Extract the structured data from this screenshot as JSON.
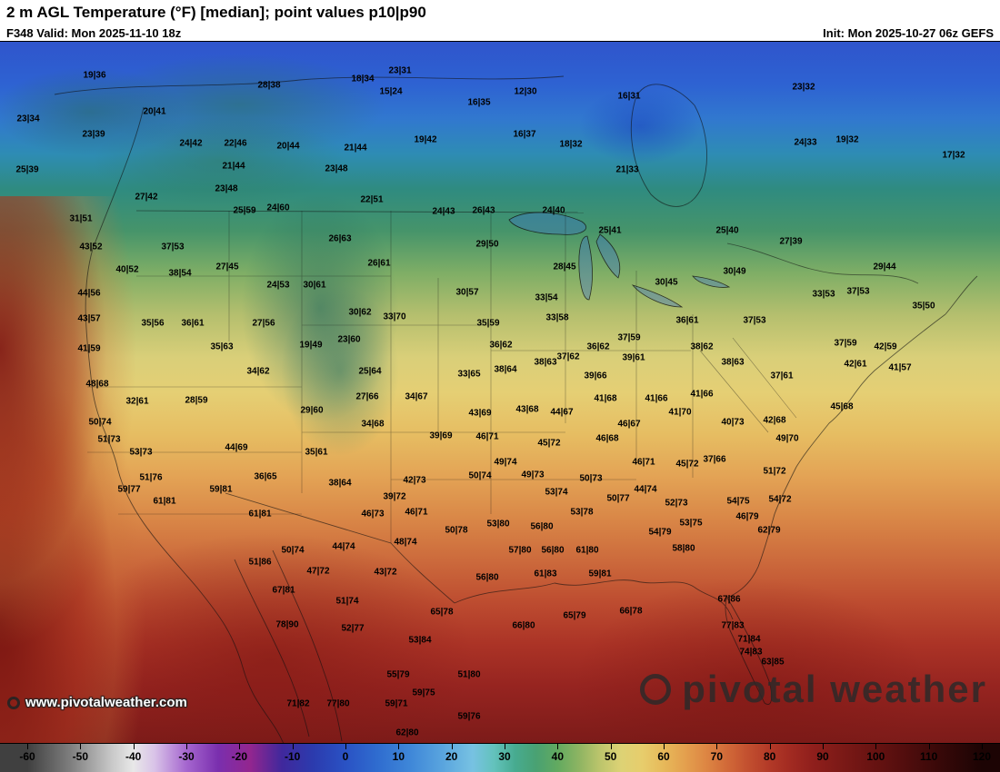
{
  "header": {
    "title": "2 m AGL Temperature (°F) [median]; point values p10|p90",
    "valid_label": "F348 Valid: Mon 2025-11-10 18z",
    "init_label": "Init: Mon 2025-10-27 06z GEFS"
  },
  "watermarks": {
    "url": "www.pivotalweather.com",
    "brand": "pivotal weather"
  },
  "colorbar": {
    "unit": "°F",
    "min": -60,
    "max": 120,
    "ticks": [
      -60,
      -50,
      -40,
      -30,
      -20,
      -10,
      0,
      10,
      20,
      30,
      40,
      50,
      60,
      70,
      80,
      90,
      100,
      110,
      120
    ],
    "stops": [
      [
        -60,
        "#404040"
      ],
      [
        -52,
        "#7d7d7d"
      ],
      [
        -44,
        "#c9c9c9"
      ],
      [
        -40,
        "#e8e8e8"
      ],
      [
        -36,
        "#d9c3e8"
      ],
      [
        -30,
        "#a566cf"
      ],
      [
        -24,
        "#7a2fae"
      ],
      [
        -18,
        "#93268f"
      ],
      [
        -12,
        "#40289c"
      ],
      [
        -6,
        "#2b3bae"
      ],
      [
        0,
        "#2a52c4"
      ],
      [
        6,
        "#2f6ccf"
      ],
      [
        12,
        "#3e86d8"
      ],
      [
        18,
        "#58a3de"
      ],
      [
        24,
        "#77c2e2"
      ],
      [
        28,
        "#63c2bc"
      ],
      [
        32,
        "#47ab90"
      ],
      [
        36,
        "#49a172"
      ],
      [
        40,
        "#62aa60"
      ],
      [
        44,
        "#8db462"
      ],
      [
        48,
        "#bcc56c"
      ],
      [
        52,
        "#ddd275"
      ],
      [
        56,
        "#e7cd6c"
      ],
      [
        60,
        "#e7b95a"
      ],
      [
        64,
        "#e4a04e"
      ],
      [
        68,
        "#dd8643"
      ],
      [
        72,
        "#d16938"
      ],
      [
        76,
        "#c24f2f"
      ],
      [
        80,
        "#b23927"
      ],
      [
        84,
        "#a12a21"
      ],
      [
        88,
        "#901f1c"
      ],
      [
        94,
        "#7a1916"
      ],
      [
        100,
        "#661211"
      ],
      [
        106,
        "#500d0d"
      ],
      [
        112,
        "#380808"
      ],
      [
        120,
        "#1c0404"
      ]
    ]
  },
  "map_points": [
    [
      104,
      37,
      "19|36"
    ],
    [
      296,
      48,
      "28|38"
    ],
    [
      440,
      32,
      "23|31"
    ],
    [
      399,
      41,
      "18|34"
    ],
    [
      430,
      55,
      "15|24"
    ],
    [
      578,
      55,
      "12|30"
    ],
    [
      692,
      60,
      "16|31"
    ],
    [
      884,
      50,
      "23|32"
    ],
    [
      31,
      85,
      "23|34"
    ],
    [
      170,
      77,
      "20|41"
    ],
    [
      527,
      67,
      "16|35"
    ],
    [
      103,
      102,
      "23|39"
    ],
    [
      210,
      112,
      "24|42"
    ],
    [
      259,
      112,
      "22|46"
    ],
    [
      317,
      115,
      "20|44"
    ],
    [
      391,
      117,
      "21|44"
    ],
    [
      468,
      108,
      "19|42"
    ],
    [
      577,
      102,
      "16|37"
    ],
    [
      628,
      113,
      "18|32"
    ],
    [
      886,
      111,
      "24|33"
    ],
    [
      932,
      108,
      "19|32"
    ],
    [
      30,
      141,
      "25|39"
    ],
    [
      257,
      137,
      "21|44"
    ],
    [
      370,
      140,
      "23|48"
    ],
    [
      690,
      141,
      "21|33"
    ],
    [
      1049,
      125,
      "17|32"
    ],
    [
      249,
      162,
      "23|48"
    ],
    [
      161,
      171,
      "27|42"
    ],
    [
      409,
      174,
      "22|51"
    ],
    [
      89,
      195,
      "31|51"
    ],
    [
      269,
      186,
      "25|59"
    ],
    [
      306,
      183,
      "24|60"
    ],
    [
      488,
      187,
      "24|43"
    ],
    [
      532,
      186,
      "26|43"
    ],
    [
      609,
      186,
      "24|40"
    ],
    [
      671,
      208,
      "25|41"
    ],
    [
      800,
      208,
      "25|40"
    ],
    [
      870,
      220,
      "27|39"
    ],
    [
      100,
      226,
      "43|52"
    ],
    [
      190,
      226,
      "37|53"
    ],
    [
      374,
      217,
      "26|63"
    ],
    [
      536,
      223,
      "29|50"
    ],
    [
      621,
      248,
      "28|45"
    ],
    [
      808,
      253,
      "30|49"
    ],
    [
      973,
      248,
      "29|44"
    ],
    [
      140,
      251,
      "40|52"
    ],
    [
      198,
      255,
      "38|54"
    ],
    [
      250,
      248,
      "27|45"
    ],
    [
      417,
      244,
      "26|61"
    ],
    [
      514,
      276,
      "30|57"
    ],
    [
      601,
      282,
      "33|54"
    ],
    [
      733,
      265,
      "30|45"
    ],
    [
      906,
      278,
      "33|53"
    ],
    [
      944,
      275,
      "37|53"
    ],
    [
      1016,
      291,
      "35|50"
    ],
    [
      98,
      277,
      "44|56"
    ],
    [
      306,
      268,
      "24|53"
    ],
    [
      346,
      268,
      "30|61"
    ],
    [
      396,
      298,
      "30|62"
    ],
    [
      434,
      303,
      "33|70"
    ],
    [
      537,
      310,
      "35|59"
    ],
    [
      613,
      304,
      "33|58"
    ],
    [
      756,
      307,
      "36|61"
    ],
    [
      830,
      307,
      "37|53"
    ],
    [
      98,
      305,
      "43|57"
    ],
    [
      168,
      310,
      "35|56"
    ],
    [
      212,
      310,
      "36|61"
    ],
    [
      290,
      310,
      "27|56"
    ],
    [
      342,
      334,
      "19|49"
    ],
    [
      384,
      328,
      "23|60"
    ],
    [
      551,
      334,
      "36|62"
    ],
    [
      625,
      347,
      "37|62"
    ],
    [
      658,
      336,
      "36|62"
    ],
    [
      692,
      326,
      "37|59"
    ],
    [
      772,
      336,
      "38|62"
    ],
    [
      930,
      332,
      "37|59"
    ],
    [
      974,
      336,
      "42|59"
    ],
    [
      98,
      338,
      "41|59"
    ],
    [
      244,
      336,
      "35|63"
    ],
    [
      407,
      363,
      "25|64"
    ],
    [
      516,
      366,
      "33|65"
    ],
    [
      556,
      361,
      "38|64"
    ],
    [
      600,
      353,
      "38|63"
    ],
    [
      697,
      348,
      "39|61"
    ],
    [
      806,
      353,
      "38|63"
    ],
    [
      860,
      368,
      "37|61"
    ],
    [
      941,
      355,
      "42|61"
    ],
    [
      990,
      359,
      "41|57"
    ],
    [
      107,
      377,
      "48|68"
    ],
    [
      284,
      363,
      "34|62"
    ],
    [
      404,
      391,
      "27|66"
    ],
    [
      458,
      391,
      "34|67"
    ],
    [
      655,
      368,
      "39|66"
    ],
    [
      666,
      393,
      "41|68"
    ],
    [
      722,
      393,
      "41|66"
    ],
    [
      772,
      388,
      "41|66"
    ],
    [
      748,
      408,
      "41|70"
    ],
    [
      926,
      402,
      "45|68"
    ],
    [
      151,
      396,
      "32|61"
    ],
    [
      216,
      395,
      "28|59"
    ],
    [
      343,
      406,
      "29|60"
    ],
    [
      528,
      409,
      "43|69"
    ],
    [
      580,
      405,
      "43|68"
    ],
    [
      618,
      408,
      "44|67"
    ],
    [
      806,
      419,
      "40|73"
    ],
    [
      852,
      417,
      "42|68"
    ],
    [
      692,
      421,
      "46|67"
    ],
    [
      668,
      437,
      "46|68"
    ],
    [
      866,
      437,
      "49|70"
    ],
    [
      110,
      419,
      "50|74"
    ],
    [
      120,
      438,
      "51|73"
    ],
    [
      410,
      421,
      "34|68"
    ],
    [
      485,
      434,
      "39|69"
    ],
    [
      536,
      435,
      "46|71"
    ],
    [
      604,
      442,
      "45|72"
    ],
    [
      260,
      447,
      "44|69"
    ],
    [
      348,
      452,
      "35|61"
    ],
    [
      556,
      463,
      "49|74"
    ],
    [
      586,
      477,
      "49|73"
    ],
    [
      155,
      452,
      "53|73"
    ],
    [
      708,
      463,
      "46|71"
    ],
    [
      756,
      465,
      "45|72"
    ],
    [
      786,
      460,
      "37|66"
    ],
    [
      852,
      473,
      "51|72"
    ],
    [
      166,
      480,
      "51|76"
    ],
    [
      292,
      479,
      "36|65"
    ],
    [
      374,
      486,
      "38|64"
    ],
    [
      456,
      483,
      "42|73"
    ],
    [
      528,
      478,
      "50|74"
    ],
    [
      650,
      481,
      "50|73"
    ],
    [
      680,
      503,
      "50|77"
    ],
    [
      710,
      493,
      "44|74"
    ],
    [
      612,
      496,
      "53|74"
    ],
    [
      142,
      493,
      "59|77"
    ],
    [
      243,
      493,
      "59|81"
    ],
    [
      181,
      506,
      "61|81"
    ],
    [
      434,
      501,
      "39|72"
    ],
    [
      744,
      508,
      "52|73"
    ],
    [
      812,
      506,
      "54|75"
    ],
    [
      858,
      504,
      "54|72"
    ],
    [
      286,
      520,
      "61|81"
    ],
    [
      410,
      520,
      "46|73"
    ],
    [
      458,
      518,
      "46|71"
    ],
    [
      640,
      518,
      "53|78"
    ],
    [
      548,
      531,
      "53|80"
    ],
    [
      596,
      534,
      "56|80"
    ],
    [
      760,
      530,
      "53|75"
    ],
    [
      822,
      523,
      "46|79"
    ],
    [
      846,
      538,
      "62|79"
    ],
    [
      502,
      538,
      "50|78"
    ],
    [
      726,
      540,
      "54|79"
    ],
    [
      752,
      558,
      "58|80"
    ],
    [
      446,
      551,
      "48|74"
    ],
    [
      322,
      560,
      "50|74"
    ],
    [
      378,
      556,
      "44|74"
    ],
    [
      572,
      560,
      "57|80"
    ],
    [
      608,
      560,
      "56|80"
    ],
    [
      646,
      560,
      "61|80"
    ],
    [
      286,
      573,
      "51|86"
    ],
    [
      350,
      583,
      "47|72"
    ],
    [
      424,
      584,
      "43|72"
    ],
    [
      536,
      590,
      "56|80"
    ],
    [
      600,
      586,
      "61|83"
    ],
    [
      660,
      586,
      "59|81"
    ],
    [
      312,
      604,
      "67|81"
    ],
    [
      382,
      616,
      "51|74"
    ],
    [
      486,
      628,
      "65|78"
    ],
    [
      694,
      627,
      "66|78"
    ],
    [
      802,
      614,
      "67|86"
    ],
    [
      316,
      642,
      "78|90"
    ],
    [
      388,
      646,
      "52|77"
    ],
    [
      576,
      643,
      "66|80"
    ],
    [
      632,
      632,
      "65|79"
    ],
    [
      806,
      643,
      "77|83"
    ],
    [
      824,
      658,
      "71|84"
    ],
    [
      462,
      659,
      "53|84"
    ],
    [
      826,
      672,
      "74|83"
    ],
    [
      850,
      683,
      "63|85"
    ],
    [
      516,
      697,
      "51|80"
    ],
    [
      438,
      697,
      "55|79"
    ],
    [
      328,
      729,
      "71|82"
    ],
    [
      372,
      729,
      "77|80"
    ],
    [
      436,
      729,
      "59|71"
    ],
    [
      466,
      717,
      "59|75"
    ],
    [
      516,
      743,
      "59|76"
    ],
    [
      448,
      761,
      "62|80"
    ]
  ]
}
